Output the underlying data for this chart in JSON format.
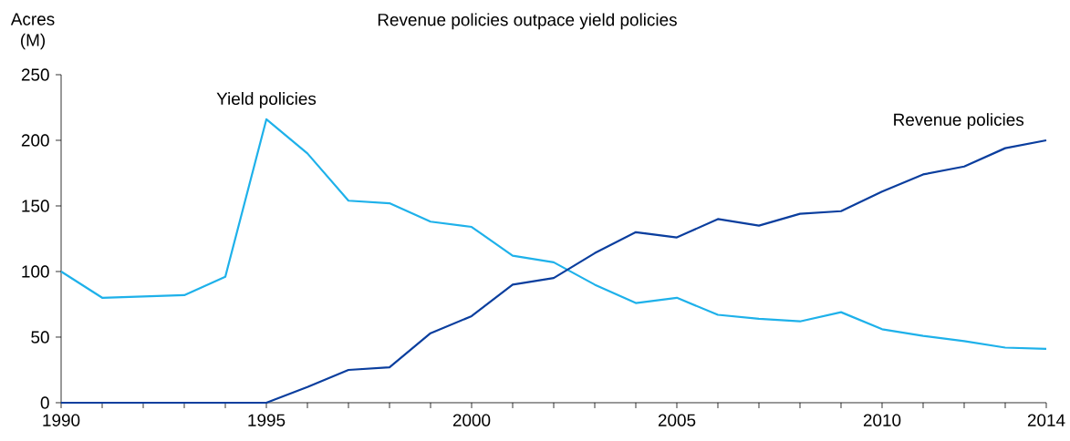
{
  "chart_data": {
    "type": "line",
    "title": "Revenue policies outpace yield policies",
    "ylabel": "Acres (M)",
    "x": [
      1990,
      1991,
      1992,
      1993,
      1994,
      1995,
      1996,
      1997,
      1998,
      1999,
      2000,
      2001,
      2002,
      2003,
      2004,
      2005,
      2006,
      2007,
      2008,
      2009,
      2010,
      2011,
      2012,
      2013,
      2014
    ],
    "series": [
      {
        "name": "Yield policies",
        "color": "#1eb1ea",
        "values": [
          100,
          80,
          81,
          82,
          96,
          216,
          190,
          154,
          152,
          138,
          134,
          112,
          107,
          90,
          76,
          80,
          67,
          64,
          62,
          69,
          56,
          51,
          47,
          42,
          41
        ]
      },
      {
        "name": "Revenue policies",
        "color": "#0a3e9e",
        "values": [
          0,
          0,
          0,
          0,
          0,
          0,
          12,
          25,
          27,
          53,
          66,
          90,
          95,
          114,
          130,
          126,
          140,
          135,
          144,
          146,
          161,
          174,
          180,
          194,
          200
        ]
      }
    ],
    "xlim": [
      1990,
      2014
    ],
    "ylim": [
      0,
      250
    ],
    "xticks": [
      1990,
      {
        "value": 1991,
        "label": null
      },
      {
        "value": 1992,
        "label": null
      },
      {
        "value": 1993,
        "label": null
      },
      {
        "value": 1994,
        "label": null
      },
      1995,
      {
        "value": 1996,
        "label": null
      },
      {
        "value": 1997,
        "label": null
      },
      {
        "value": 1998,
        "label": null
      },
      {
        "value": 1999,
        "label": null
      },
      2000,
      {
        "value": 2001,
        "label": null
      },
      {
        "value": 2002,
        "label": null
      },
      {
        "value": 2003,
        "label": null
      },
      {
        "value": 2004,
        "label": null
      },
      2005,
      {
        "value": 2006,
        "label": null
      },
      {
        "value": 2007,
        "label": null
      },
      {
        "value": 2008,
        "label": null
      },
      {
        "value": 2009,
        "label": null
      },
      2010,
      {
        "value": 2011,
        "label": null
      },
      {
        "value": 2012,
        "label": null
      },
      {
        "value": 2013,
        "label": null
      },
      2014
    ],
    "yticks": [
      0,
      50,
      100,
      150,
      200,
      250
    ],
    "grid": false,
    "legend": false,
    "marker": "none",
    "line_style": "solid"
  }
}
